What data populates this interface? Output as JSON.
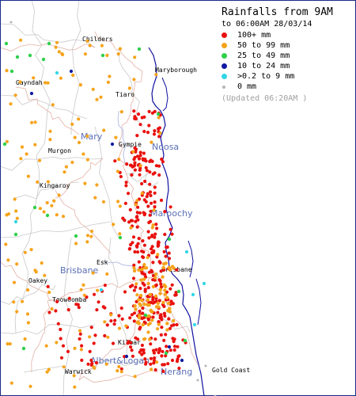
{
  "legend": {
    "title": "Rainfalls from 9AM",
    "subtitle": "to 06:00AM 28/03/14",
    "items": [
      {
        "label": "100+ mm",
        "color": "#e8110e"
      },
      {
        "label": "50  to 99 mm",
        "color": "#f5a31a"
      },
      {
        "label": "25  to 49 mm",
        "color": "#2ed04a"
      },
      {
        "label": "10  to 24 mm",
        "color": "#101aa0"
      },
      {
        "label": ">0.2 to 9 mm",
        "color": "#31d6e6"
      },
      {
        "label": "0 mm",
        "color": "#b4b4b4"
      }
    ],
    "updated": "(Updated 06:20AM  )"
  },
  "colors": {
    "land": "#ffffff",
    "sea": "#ffffff",
    "coast": "#1010a0",
    "roads": "#e3b0a6",
    "boundaries": "#c9c9c9",
    "river": "#b6c0e6"
  },
  "places": {
    "major": [
      "Mary",
      "Noosa",
      "Maroochy",
      "Brisbane",
      "Brisbane",
      "Albert&Logan",
      "Nerang"
    ],
    "towns": [
      "Childers",
      "Maryborough",
      "Gayndah",
      "Tiaro",
      "Gympie",
      "Murgon",
      "Kingaroy",
      "Esk",
      "Oakey",
      "Toowoomba",
      "Kilbar",
      "Warwick",
      "Gold Coast",
      "Brisbane"
    ]
  }
}
